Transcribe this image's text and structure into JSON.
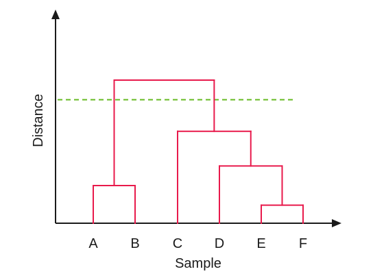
{
  "diagram": {
    "type": "dendrogram",
    "x_axis_label": "Sample",
    "y_axis_label": "Distance",
    "leaves": [
      "A",
      "B",
      "C",
      "D",
      "E",
      "F"
    ],
    "merges": [
      {
        "left": "E",
        "right": "F",
        "height": 0.12
      },
      {
        "left": "D",
        "right": "E+F",
        "height": 0.38
      },
      {
        "left": "A",
        "right": "B",
        "height": 0.25
      },
      {
        "left": "C",
        "right": "D+E+F",
        "height": 0.61
      },
      {
        "left": "A+B",
        "right": "C+D+E+F",
        "height": 0.95
      }
    ],
    "cut_line_height": 0.82,
    "colors": {
      "branches": "#e8194b",
      "axes": "#1a1a1a",
      "cut_line": "#66bb22"
    }
  }
}
